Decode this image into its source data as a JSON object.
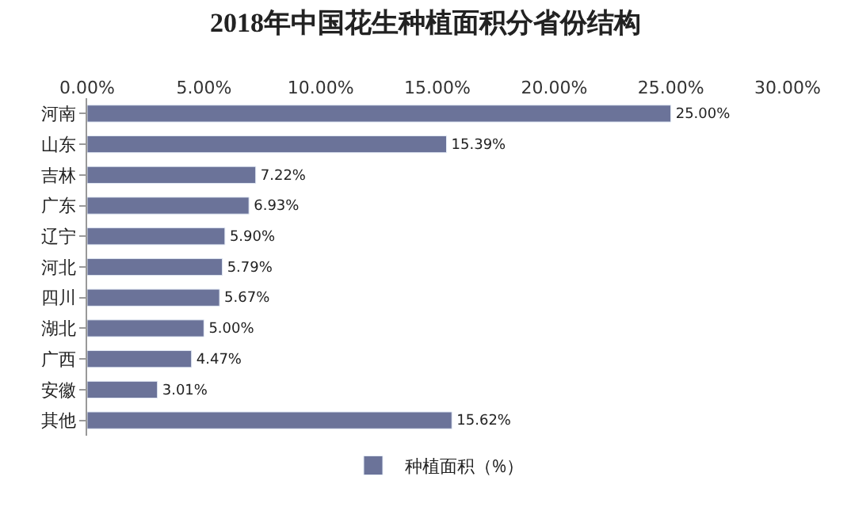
{
  "chart_data": {
    "type": "bar",
    "orientation": "horizontal",
    "title": "2018年中国花生种植面积分省份结构",
    "categories": [
      "河南",
      "山东",
      "吉林",
      "广东",
      "辽宁",
      "河北",
      "四川",
      "湖北",
      "广西",
      "安徽",
      "其他"
    ],
    "series": [
      {
        "name": "种植面积（%）",
        "color": "#6b7399",
        "values": [
          25.0,
          15.39,
          7.22,
          6.93,
          5.9,
          5.79,
          5.67,
          5.0,
          4.47,
          3.01,
          15.62
        ],
        "value_labels": [
          "25.00%",
          "15.39%",
          "7.22%",
          "6.93%",
          "5.90%",
          "5.79%",
          "5.67%",
          "5.00%",
          "4.47%",
          "3.01%",
          "15.62%"
        ]
      }
    ],
    "xlim": [
      0,
      30
    ],
    "xticks": [
      {
        "value": 0,
        "label": "0.00%"
      },
      {
        "value": 5,
        "label": "5.00%"
      },
      {
        "value": 10,
        "label": "10.00%"
      },
      {
        "value": 15,
        "label": "15.00%"
      },
      {
        "value": 20,
        "label": "20.00%"
      },
      {
        "value": 25,
        "label": "25.00%"
      },
      {
        "value": 30,
        "label": "30.00%"
      }
    ],
    "grid": false,
    "legend": "bottom"
  }
}
